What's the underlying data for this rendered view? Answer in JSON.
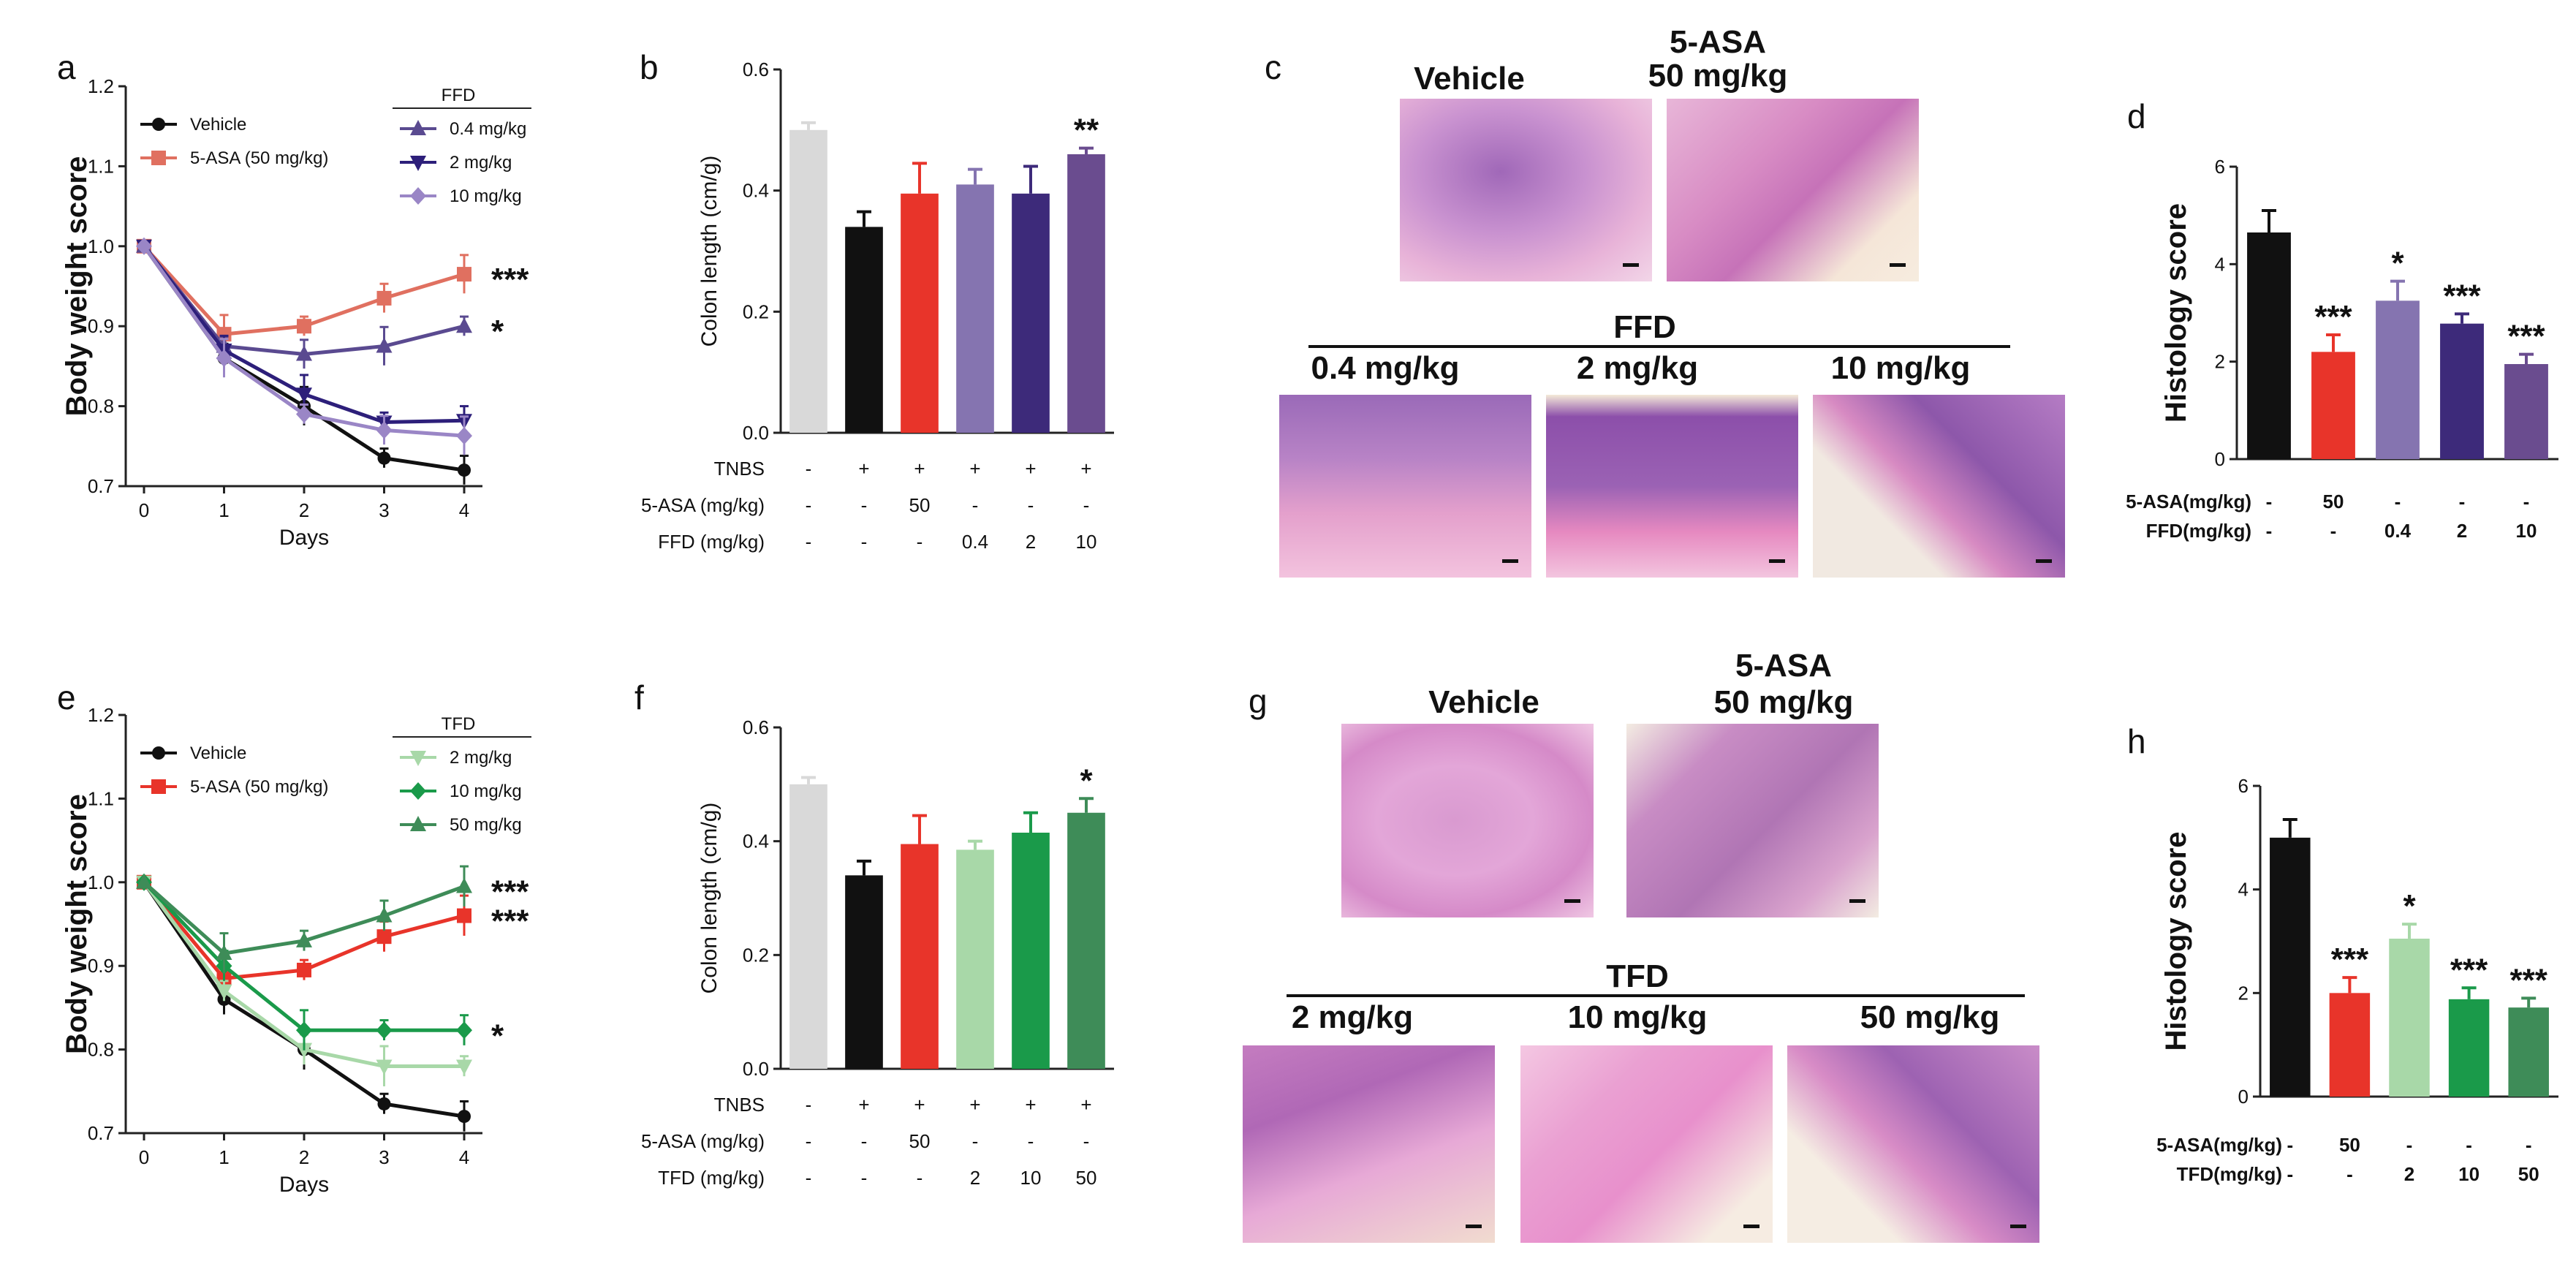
{
  "colors": {
    "vehicle": "#111111",
    "asa": "#e8342a",
    "ffd_low": "#8574b0",
    "ffd_mid": "#3d2a7a",
    "ffd_high": "#6a4c8f",
    "ffd_line_low": "#5a4a90",
    "ffd_line_mid": "#2d1f7a",
    "ffd_line_high": "#9a86c6",
    "asa_line_a": "#e07060",
    "tfd_low": "#a8d8a8",
    "tfd_mid": "#1a9a4a",
    "tfd_high": "#3e8c58",
    "control": "#d9d9d9",
    "tissue_pink": "#e9a6cf",
    "tissue_purple": "#8e5aa8",
    "tissue_bg": "#f4efe6"
  },
  "chart_data": [
    {
      "panel": "a",
      "type": "line",
      "xlabel": "Days",
      "ylabel": "Body weight score",
      "x": [
        0,
        1,
        2,
        3,
        4
      ],
      "xticks": [
        "0",
        "1",
        "2",
        "3",
        "4"
      ],
      "yticks": [
        "0.7",
        "0.8",
        ".0.9",
        "1.0",
        "1.1",
        "1.2"
      ],
      "ylim": [
        0.7,
        1.2
      ],
      "legend_left": [
        "Vehicle",
        "5-ASA (50 mg/kg)"
      ],
      "legend_group_title": "FFD",
      "legend_right": [
        "0.4 mg/kg",
        "2 mg/kg",
        "10 mg/kg"
      ],
      "series": [
        {
          "name": "Vehicle",
          "values": [
            1.0,
            0.86,
            0.8,
            0.735,
            0.72
          ]
        },
        {
          "name": "5-ASA (50 mg/kg)",
          "values": [
            1.0,
            0.89,
            0.9,
            0.935,
            0.965
          ]
        },
        {
          "name": "0.4 mg/kg",
          "values": [
            1.0,
            0.875,
            0.865,
            0.875,
            0.9
          ]
        },
        {
          "name": "2 mg/kg",
          "values": [
            1.0,
            0.87,
            0.815,
            0.78,
            0.782
          ]
        },
        {
          "name": "10 mg/kg",
          "values": [
            1.0,
            0.86,
            0.79,
            0.77,
            0.763
          ]
        }
      ],
      "annotations": [
        "***",
        "*"
      ]
    },
    {
      "panel": "b",
      "type": "bar",
      "ylabel": "Colon length (cm/g)",
      "yticks": [
        "0.0",
        "0.2",
        "0.4",
        "0.6"
      ],
      "ylim": [
        0,
        0.6
      ],
      "values": [
        0.5,
        0.34,
        0.395,
        0.41,
        0.395,
        0.46
      ],
      "errors": [
        0.012,
        0.025,
        0.05,
        0.025,
        0.045,
        0.01
      ],
      "rows": [
        {
          "label": "TNBS",
          "cells": [
            "-",
            "+",
            "+",
            "+",
            "+",
            "+"
          ]
        },
        {
          "label": "5-ASA (mg/kg)",
          "cells": [
            "-",
            "-",
            "50",
            "-",
            "-",
            "-"
          ]
        },
        {
          "label": "FFD (mg/kg)",
          "cells": [
            "-",
            "-",
            "-",
            "0.4",
            "2",
            "10"
          ]
        }
      ],
      "stars": [
        "",
        "",
        "",
        "",
        "",
        "**"
      ]
    },
    {
      "panel": "d",
      "type": "bar",
      "ylabel": "Histology score",
      "yticks": [
        "0",
        "2",
        "4",
        "6"
      ],
      "ylim": [
        0,
        6
      ],
      "values": [
        4.65,
        2.2,
        3.25,
        2.78,
        1.95
      ],
      "errors": [
        0.45,
        0.35,
        0.4,
        0.2,
        0.2
      ],
      "rows": [
        {
          "label": "5-ASA(mg/kg)",
          "cells": [
            "-",
            "50",
            "-",
            "-",
            "-"
          ]
        },
        {
          "label": "FFD(mg/kg)",
          "cells": [
            "-",
            "-",
            "0.4",
            "2",
            "10"
          ]
        }
      ],
      "stars": [
        "",
        "***",
        "*",
        "***",
        "***"
      ]
    },
    {
      "panel": "e",
      "type": "line",
      "xlabel": "Days",
      "ylabel": "Body weight score",
      "x": [
        0,
        1,
        2,
        3,
        4
      ],
      "xticks": [
        "0",
        "1",
        "2",
        "3",
        "4"
      ],
      "yticks": [
        "0.7",
        "0.8",
        "0.9",
        "1.0",
        "1.1",
        "1.2"
      ],
      "ylim": [
        0.7,
        1.2
      ],
      "legend_left": [
        "Vehicle",
        "5-ASA (50 mg/kg)"
      ],
      "legend_group_title": "TFD",
      "legend_right": [
        "2 mg/kg",
        "10 mg/kg",
        "50 mg/kg"
      ],
      "series": [
        {
          "name": "Vehicle",
          "values": [
            1.0,
            0.86,
            0.8,
            0.735,
            0.72
          ]
        },
        {
          "name": "5-ASA (50 mg/kg)",
          "values": [
            1.0,
            0.885,
            0.895,
            0.935,
            0.96
          ]
        },
        {
          "name": "2 mg/kg",
          "values": [
            1.0,
            0.87,
            0.8,
            0.78,
            0.78
          ]
        },
        {
          "name": "10 mg/kg",
          "values": [
            1.0,
            0.9,
            0.823,
            0.823,
            0.823
          ]
        },
        {
          "name": "50 mg/kg",
          "values": [
            1.0,
            0.915,
            0.93,
            0.96,
            0.995
          ]
        }
      ],
      "annotations": [
        "***",
        "***",
        "*"
      ]
    },
    {
      "panel": "f",
      "type": "bar",
      "ylabel": "Colon length (cm/g)",
      "yticks": [
        "0.0",
        "0.2",
        "0.4",
        "0.6"
      ],
      "ylim": [
        0,
        0.6
      ],
      "values": [
        0.5,
        0.34,
        0.395,
        0.385,
        0.415,
        0.45
      ],
      "errors": [
        0.012,
        0.025,
        0.05,
        0.015,
        0.035,
        0.025
      ],
      "rows": [
        {
          "label": "TNBS",
          "cells": [
            "-",
            "+",
            "+",
            "+",
            "+",
            "+"
          ]
        },
        {
          "label": "5-ASA (mg/kg)",
          "cells": [
            "-",
            "-",
            "50",
            "-",
            "-",
            "-"
          ]
        },
        {
          "label": "TFD (mg/kg)",
          "cells": [
            "-",
            "-",
            "-",
            "2",
            "10",
            "50"
          ]
        }
      ],
      "stars": [
        "",
        "",
        "",
        "",
        "",
        "*"
      ]
    },
    {
      "panel": "h",
      "type": "bar",
      "ylabel": "Histology score",
      "yticks": [
        "0",
        "2",
        "4",
        "6"
      ],
      "ylim": [
        0,
        6
      ],
      "values": [
        5.0,
        2.0,
        3.05,
        1.88,
        1.72
      ],
      "errors": [
        0.35,
        0.3,
        0.28,
        0.22,
        0.18
      ],
      "rows": [
        {
          "label": "5-ASA(mg/kg)",
          "cells": [
            "-",
            "50",
            "-",
            "-",
            "-"
          ]
        },
        {
          "label": "TFD(mg/kg)",
          "cells": [
            "-",
            "-",
            "2",
            "10",
            "50"
          ]
        }
      ],
      "stars": [
        "",
        "***",
        "*",
        "***",
        "***"
      ]
    }
  ],
  "histology": {
    "c": {
      "label": "c",
      "vehicle": "Vehicle",
      "asa_line1": "5-ASA",
      "asa_line2": "50 mg/kg",
      "group": "FFD",
      "doses": [
        "0.4 mg/kg",
        "2 mg/kg",
        "10 mg/kg"
      ]
    },
    "g": {
      "label": "g",
      "vehicle": "Vehicle",
      "asa_line1": "5-ASA",
      "asa_line2": "50 mg/kg",
      "group": "TFD",
      "doses": [
        "2 mg/kg",
        "10 mg/kg",
        "50 mg/kg"
      ]
    }
  }
}
